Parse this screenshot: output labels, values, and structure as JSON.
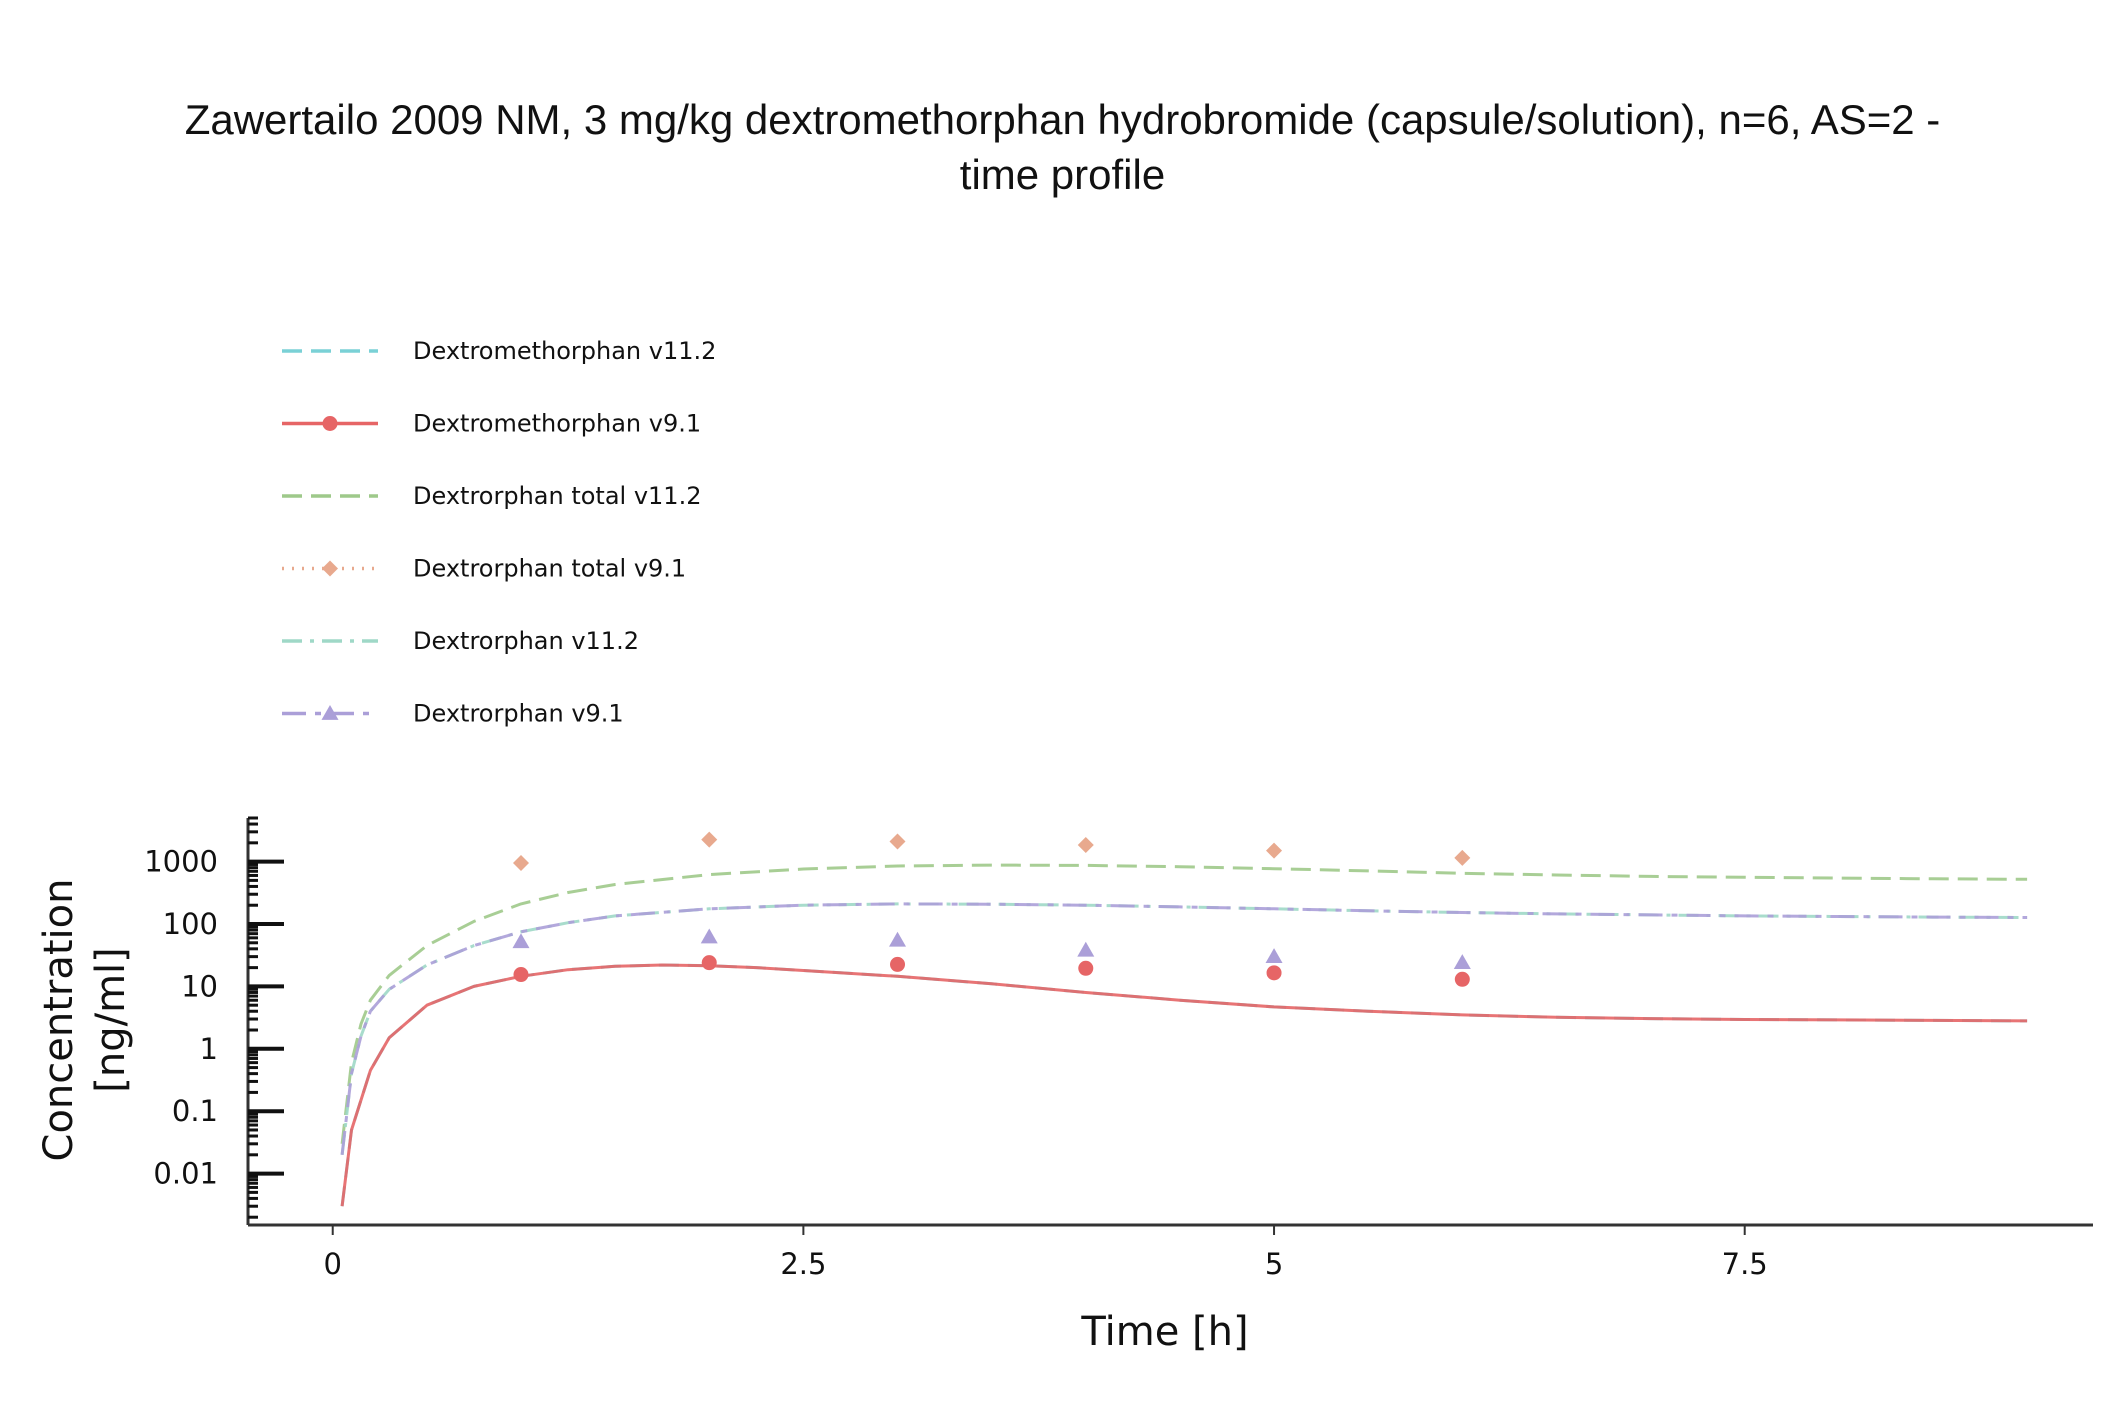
{
  "chart_data": {
    "type": "line",
    "title_line1": "Zawertailo 2009 NM,  3 mg/kg  dextromethorphan hydrobromide (capsule/solution), n=6,  AS=2 -",
    "title_line2": "time profile",
    "xlabel": "Time [h]",
    "ylabel_line1": "Concentration",
    "ylabel_line2": "[ng/ml]",
    "xlim": [
      -0.45,
      9.35
    ],
    "ylim": [
      0.0015,
      5000
    ],
    "yscale": "log",
    "xticks": [
      0,
      2.5,
      5,
      7.5
    ],
    "xtick_labels": [
      "0",
      "2.5",
      "5",
      "7.5"
    ],
    "yticks": [
      0.01,
      0.1,
      1,
      10,
      100,
      1000
    ],
    "ytick_labels": [
      "0.01",
      "0.1",
      "1",
      "10",
      "100",
      "1000"
    ],
    "legend_position": "top-left",
    "series": [
      {
        "name": "Dextromethorphan v11.2",
        "kind": "line",
        "color": "#7ad1d6",
        "dash": "20,9",
        "marker": "none",
        "x": [
          0.05,
          0.1,
          0.2,
          0.3,
          0.5,
          0.75,
          1,
          1.25,
          1.5,
          1.75,
          2,
          2.25,
          2.5,
          3,
          3.5,
          4,
          4.5,
          5,
          5.5,
          6,
          6.5,
          7,
          7.5,
          8,
          8.5,
          9
        ],
        "y": [
          0.003,
          0.05,
          0.45,
          1.5,
          5,
          10,
          14.5,
          18.5,
          21,
          22,
          21.5,
          20,
          18,
          14.5,
          11,
          8,
          6,
          4.7,
          4,
          3.5,
          3.2,
          3.05,
          2.95,
          2.9,
          2.85,
          2.8
        ]
      },
      {
        "name": "Dextromethorphan v9.1",
        "kind": "line+points",
        "color": "#e66566",
        "dash": "",
        "marker": "circle",
        "x": [
          0.05,
          0.1,
          0.2,
          0.3,
          0.5,
          0.75,
          1,
          1.25,
          1.5,
          1.75,
          2,
          2.25,
          2.5,
          3,
          3.5,
          4,
          4.5,
          5,
          5.5,
          6,
          6.5,
          7,
          7.5,
          8,
          8.5,
          9
        ],
        "y": [
          0.003,
          0.05,
          0.45,
          1.5,
          5,
          10,
          14.5,
          18.5,
          21,
          22,
          21.5,
          20,
          18,
          14.5,
          11,
          8,
          6,
          4.7,
          4,
          3.5,
          3.2,
          3.05,
          2.95,
          2.9,
          2.85,
          2.8
        ],
        "points_x": [
          1,
          2,
          3,
          4,
          5,
          6
        ],
        "points_y": [
          15.5,
          24,
          22.5,
          19.5,
          16.5,
          13
        ]
      },
      {
        "name": "Dextrorphan total v11.2",
        "kind": "line",
        "color": "#9ec98a",
        "dash": "20,9",
        "marker": "none",
        "x": [
          0.05,
          0.1,
          0.15,
          0.2,
          0.3,
          0.5,
          0.75,
          1,
          1.25,
          1.5,
          2,
          2.5,
          3,
          3.5,
          4,
          4.5,
          5,
          5.5,
          6,
          6.5,
          7,
          7.5,
          8,
          8.5,
          9
        ],
        "y": [
          0.03,
          0.6,
          2.5,
          6,
          15,
          45,
          110,
          210,
          320,
          430,
          620,
          760,
          850,
          880,
          870,
          830,
          770,
          710,
          650,
          610,
          580,
          560,
          545,
          530,
          520
        ]
      },
      {
        "name": "Dextrorphan total v9.1",
        "kind": "points",
        "color": "#e8a98e",
        "dash": "2,8",
        "marker": "diamond",
        "x": [],
        "y": [],
        "points_x": [
          1,
          2,
          3,
          4,
          5,
          6
        ],
        "points_y": [
          950,
          2250,
          2100,
          1850,
          1500,
          1150
        ]
      },
      {
        "name": "Dextrorphan v11.2",
        "kind": "line",
        "color": "#9fd8c7",
        "dash": "20,8,4,8",
        "marker": "none",
        "x": [
          0.05,
          0.1,
          0.15,
          0.2,
          0.3,
          0.5,
          0.75,
          1,
          1.25,
          1.5,
          2,
          2.5,
          3,
          3.5,
          4,
          4.5,
          5,
          5.5,
          6,
          6.5,
          7,
          7.5,
          8,
          8.5,
          9
        ],
        "y": [
          0.02,
          0.4,
          1.6,
          4,
          9,
          22,
          45,
          75,
          105,
          135,
          175,
          200,
          210,
          208,
          200,
          188,
          175,
          163,
          153,
          145,
          140,
          135,
          132,
          129,
          127
        ]
      },
      {
        "name": "Dextrorphan v9.1",
        "kind": "line+points",
        "color": "#ab9fd8",
        "dash": "24,9,6,9",
        "marker": "triangle",
        "x": [
          0.05,
          0.1,
          0.15,
          0.2,
          0.3,
          0.5,
          0.75,
          1,
          1.25,
          1.5,
          2,
          2.5,
          3,
          3.5,
          4,
          4.5,
          5,
          5.5,
          6,
          6.5,
          7,
          7.5,
          8,
          8.5,
          9
        ],
        "y": [
          0.02,
          0.4,
          1.6,
          4,
          9,
          22,
          45,
          75,
          105,
          135,
          175,
          200,
          210,
          208,
          200,
          188,
          175,
          163,
          153,
          145,
          140,
          135,
          132,
          129,
          127
        ],
        "points_x": [
          1,
          2,
          3,
          4,
          5,
          6
        ],
        "points_y": [
          52,
          62,
          55,
          38,
          30,
          24
        ]
      }
    ]
  }
}
